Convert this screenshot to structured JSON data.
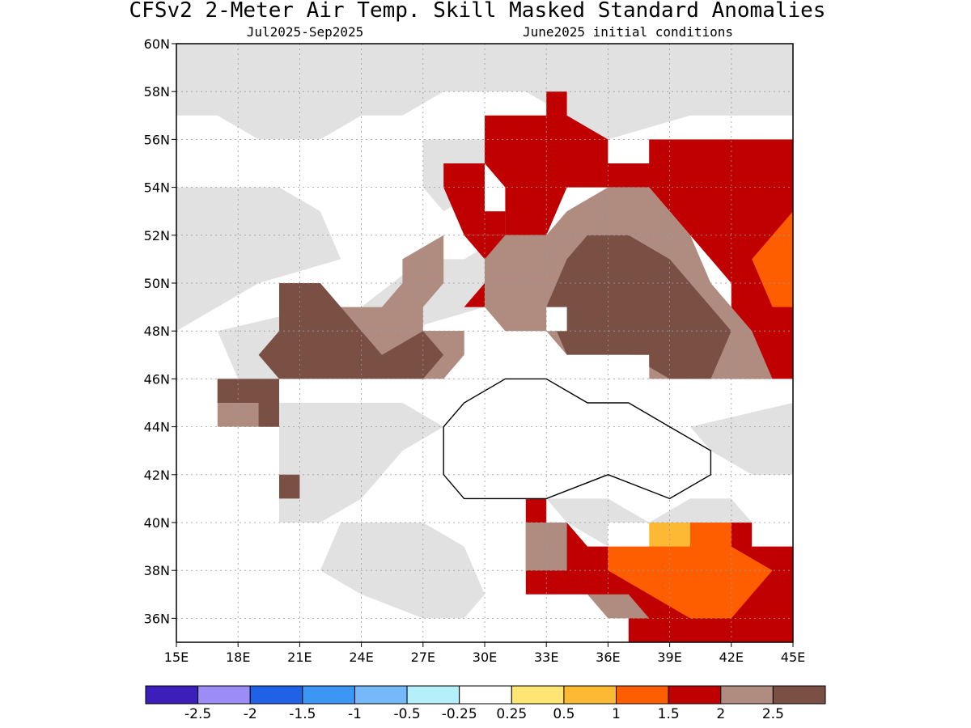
{
  "title": "CFSv2 2-Meter Air Temp. Skill Masked Standard Anomalies",
  "subtitle_left": "Jul2025-Sep2025",
  "subtitle_right": "June2025 initial conditions",
  "map": {
    "lon_range": [
      15,
      45
    ],
    "lat_range": [
      35,
      60
    ],
    "x_ticks": [
      "15E",
      "18E",
      "21E",
      "24E",
      "27E",
      "30E",
      "33E",
      "36E",
      "39E",
      "42E",
      "45E"
    ],
    "y_ticks": [
      "36N",
      "38N",
      "40N",
      "42N",
      "44N",
      "46N",
      "48N",
      "50N",
      "52N",
      "54N",
      "56N",
      "58N",
      "60N"
    ],
    "regions": [
      {
        "category": "skill-mask",
        "color": "#e1e1e1",
        "polys": [
          [
            [
              15,
              60
            ],
            [
              45,
              60
            ],
            [
              45,
              57
            ],
            [
              40,
              57
            ],
            [
              36,
              56
            ],
            [
              34,
              57
            ],
            [
              32,
              58
            ],
            [
              28,
              58
            ],
            [
              26,
              57
            ],
            [
              24,
              57
            ],
            [
              22,
              56
            ],
            [
              19,
              56
            ],
            [
              17,
              57
            ],
            [
              15,
              57
            ]
          ],
          [
            [
              15,
              54
            ],
            [
              20,
              54
            ],
            [
              22,
              53
            ],
            [
              23,
              51
            ],
            [
              19,
              50
            ],
            [
              17,
              49
            ],
            [
              15,
              48
            ]
          ],
          [
            [
              17,
              48
            ],
            [
              22,
              49
            ],
            [
              24,
              49
            ],
            [
              27,
              51
            ],
            [
              29,
              51
            ],
            [
              31,
              52
            ],
            [
              30,
              49
            ],
            [
              26,
              48
            ],
            [
              24,
              47
            ],
            [
              21,
              46
            ],
            [
              18,
              46
            ]
          ],
          [
            [
              20,
              45
            ],
            [
              26,
              45
            ],
            [
              28,
              44
            ],
            [
              26,
              43
            ],
            [
              24,
              41
            ],
            [
              22,
              40
            ],
            [
              20,
              40
            ]
          ],
          [
            [
              23,
              40
            ],
            [
              27,
              40
            ],
            [
              29,
              39
            ],
            [
              30,
              37
            ],
            [
              29,
              36
            ],
            [
              27,
              36
            ],
            [
              24,
              37
            ],
            [
              22,
              38
            ]
          ],
          [
            [
              33,
              41
            ],
            [
              36,
              41
            ],
            [
              38,
              40
            ],
            [
              40,
              41
            ],
            [
              42,
              41
            ],
            [
              43,
              40
            ],
            [
              40,
              39
            ],
            [
              36,
              39
            ],
            [
              34,
              40
            ]
          ],
          [
            [
              40,
              44
            ],
            [
              45,
              45
            ],
            [
              45,
              42
            ],
            [
              43,
              42
            ],
            [
              41,
              43
            ]
          ],
          [
            [
              27,
              56
            ],
            [
              30,
              56
            ],
            [
              30,
              54
            ],
            [
              28,
              53
            ],
            [
              27,
              54
            ]
          ],
          [
            [
              34,
              53
            ],
            [
              38,
              53
            ],
            [
              37,
              51
            ],
            [
              35,
              51
            ]
          ]
        ]
      },
      {
        "category": "anom-1.5-2",
        "color": "#c00000",
        "polys": [
          [
            [
              29,
              52
            ],
            [
              31,
              52
            ],
            [
              31,
              51
            ],
            [
              30,
              50
            ],
            [
              29,
              49
            ],
            [
              29,
              48
            ],
            [
              27,
              48
            ],
            [
              27,
              47
            ],
            [
              28,
              46
            ],
            [
              29,
              47
            ],
            [
              29,
              49
            ],
            [
              30,
              49
            ],
            [
              30,
              51
            ],
            [
              29,
              52
            ]
          ],
          [
            [
              30,
              57
            ],
            [
              33,
              57
            ],
            [
              33,
              58
            ],
            [
              34,
              58
            ],
            [
              34,
              57
            ],
            [
              36,
              56
            ],
            [
              36,
              55
            ],
            [
              38,
              55
            ],
            [
              38,
              56
            ],
            [
              45,
              56
            ],
            [
              45,
              46
            ],
            [
              42,
              46
            ],
            [
              42,
              50
            ],
            [
              38,
              54
            ],
            [
              34,
              54
            ],
            [
              33,
              52
            ],
            [
              31,
              52
            ],
            [
              31,
              54
            ],
            [
              30,
              55
            ]
          ],
          [
            [
              28,
              55
            ],
            [
              30,
              55
            ],
            [
              30,
              53
            ],
            [
              31,
              53
            ],
            [
              31,
              52
            ],
            [
              29,
              52
            ],
            [
              28,
              54
            ]
          ],
          [
            [
              19,
              45
            ],
            [
              20,
              45
            ],
            [
              20,
              44
            ],
            [
              19,
              44
            ]
          ],
          [
            [
              32,
              41
            ],
            [
              33,
              41
            ],
            [
              33,
              40
            ],
            [
              32,
              40
            ]
          ],
          [
            [
              32,
              40
            ],
            [
              34,
              40
            ],
            [
              35,
              39
            ],
            [
              38,
              39
            ],
            [
              41,
              40
            ],
            [
              43,
              40
            ],
            [
              45,
              39
            ],
            [
              45,
              35
            ],
            [
              37,
              35
            ],
            [
              37,
              36
            ],
            [
              35,
              37
            ],
            [
              32,
              37
            ]
          ]
        ]
      },
      {
        "category": "anom-1-1.5",
        "color": "#fe5e00",
        "polys": [
          [
            [
              36,
              39
            ],
            [
              38,
              39
            ],
            [
              40,
              40
            ],
            [
              42,
              40
            ],
            [
              42,
              39
            ],
            [
              44,
              38
            ],
            [
              43,
              37
            ],
            [
              42,
              36
            ],
            [
              40,
              36
            ],
            [
              38,
              37
            ],
            [
              36,
              38
            ]
          ],
          [
            [
              43,
              51
            ],
            [
              45,
              53
            ],
            [
              45,
              49
            ],
            [
              44,
              49
            ]
          ]
        ]
      },
      {
        "category": "anom-0.5-1",
        "color": "#fdb933",
        "polys": [
          [
            [
              38,
              40
            ],
            [
              40,
              40
            ],
            [
              40,
              39
            ],
            [
              38,
              39
            ]
          ]
        ]
      },
      {
        "category": "anom-2-2.5",
        "color": "#b08c80",
        "polys": [
          [
            [
              17,
              46
            ],
            [
              20,
              46
            ],
            [
              20,
              44
            ],
            [
              17,
              44
            ]
          ],
          [
            [
              20,
              50
            ],
            [
              22,
              50
            ],
            [
              23,
              49
            ],
            [
              25,
              49
            ],
            [
              26,
              50
            ],
            [
              26,
              51
            ],
            [
              28,
              52
            ],
            [
              28,
              50
            ],
            [
              27,
              49
            ],
            [
              27,
              48
            ],
            [
              29,
              48
            ],
            [
              29,
              46
            ],
            [
              27,
              46
            ],
            [
              25,
              47
            ],
            [
              22,
              47
            ],
            [
              20,
              47
            ],
            [
              20,
              48
            ]
          ],
          [
            [
              30,
              51
            ],
            [
              31,
              52
            ],
            [
              33,
              52
            ],
            [
              34,
              53
            ],
            [
              36,
              54
            ],
            [
              38,
              54
            ],
            [
              40,
              52
            ],
            [
              41,
              50
            ],
            [
              43,
              48
            ],
            [
              44,
              46
            ],
            [
              40,
              46
            ],
            [
              38,
              46
            ],
            [
              38,
              47
            ],
            [
              36,
              47
            ],
            [
              34,
              47
            ],
            [
              33,
              48
            ],
            [
              31,
              48
            ],
            [
              30,
              49
            ]
          ],
          [
            [
              32,
              40
            ],
            [
              34,
              40
            ],
            [
              34,
              38
            ],
            [
              32,
              38
            ]
          ],
          [
            [
              35,
              37
            ],
            [
              37,
              37
            ],
            [
              38,
              36
            ],
            [
              36,
              36
            ]
          ]
        ]
      },
      {
        "category": "anom-gt-2.5",
        "color": "#7a5045",
        "polys": [
          [
            [
              17,
              46
            ],
            [
              20,
              46
            ],
            [
              20,
              44
            ],
            [
              19,
              44
            ],
            [
              19,
              45
            ],
            [
              18,
              45
            ],
            [
              17,
              45
            ]
          ],
          [
            [
              20,
              50
            ],
            [
              22,
              50
            ],
            [
              23,
              49
            ],
            [
              24,
              48
            ],
            [
              25,
              47
            ],
            [
              27,
              48
            ],
            [
              28,
              47
            ],
            [
              27,
              46
            ],
            [
              25,
              46
            ],
            [
              22,
              46
            ],
            [
              20,
              46
            ],
            [
              19,
              47
            ],
            [
              20,
              48
            ]
          ],
          [
            [
              34,
              51
            ],
            [
              35,
              52
            ],
            [
              37,
              52
            ],
            [
              39,
              51
            ],
            [
              41,
              49
            ],
            [
              42,
              48
            ],
            [
              41,
              46
            ],
            [
              39,
              46
            ],
            [
              37,
              47
            ],
            [
              34,
              47
            ],
            [
              33,
              49
            ]
          ],
          [
            [
              20,
              42
            ],
            [
              21,
              42
            ],
            [
              21,
              41
            ],
            [
              20,
              41
            ]
          ]
        ]
      },
      {
        "category": "white-gap",
        "color": "#ffffff",
        "polys": [
          [
            [
              21,
              46
            ],
            [
              29,
              46
            ],
            [
              30,
              45
            ],
            [
              33,
              46
            ],
            [
              36,
              46
            ],
            [
              38,
              46
            ],
            [
              38,
              47
            ],
            [
              36,
              47
            ],
            [
              35,
              47
            ],
            [
              33,
              47
            ],
            [
              31,
              48
            ],
            [
              30,
              48
            ],
            [
              29,
              47
            ],
            [
              28,
              46
            ],
            [
              27,
              46
            ],
            [
              26,
              46
            ],
            [
              24,
              46
            ],
            [
              22,
              46
            ]
          ],
          [
            [
              33,
              49
            ],
            [
              34,
              49
            ],
            [
              34,
              48
            ],
            [
              33,
              48
            ]
          ],
          [
            [
              36,
              40
            ],
            [
              38,
              40
            ],
            [
              38,
              39
            ],
            [
              36,
              39
            ]
          ],
          [
            [
              43,
              40
            ],
            [
              45,
              40
            ],
            [
              45,
              39
            ],
            [
              43,
              39
            ]
          ]
        ]
      }
    ],
    "sea": [
      [
        28,
        44
      ],
      [
        29,
        45
      ],
      [
        31,
        46
      ],
      [
        33,
        46
      ],
      [
        35,
        45
      ],
      [
        37,
        45
      ],
      [
        39,
        44
      ],
      [
        41,
        43
      ],
      [
        41,
        42
      ],
      [
        39,
        41
      ],
      [
        36,
        42
      ],
      [
        33,
        41
      ],
      [
        31,
        41
      ],
      [
        29,
        41
      ],
      [
        28,
        42
      ]
    ]
  },
  "colorbar": {
    "colors": [
      "#3c1fba",
      "#9c8cf6",
      "#1f62e6",
      "#3b96f4",
      "#76b9fa",
      "#b4f0fa",
      "#ffffff",
      "#ffe574",
      "#fdb933",
      "#fe5e00",
      "#c00000",
      "#b08c80",
      "#7a5045"
    ],
    "labels": [
      "-2.5",
      "-2",
      "-1.5",
      "-1",
      "-0.5",
      "-0.25",
      "0.25",
      "0.5",
      "1",
      "1.5",
      "2",
      "2.5"
    ]
  }
}
